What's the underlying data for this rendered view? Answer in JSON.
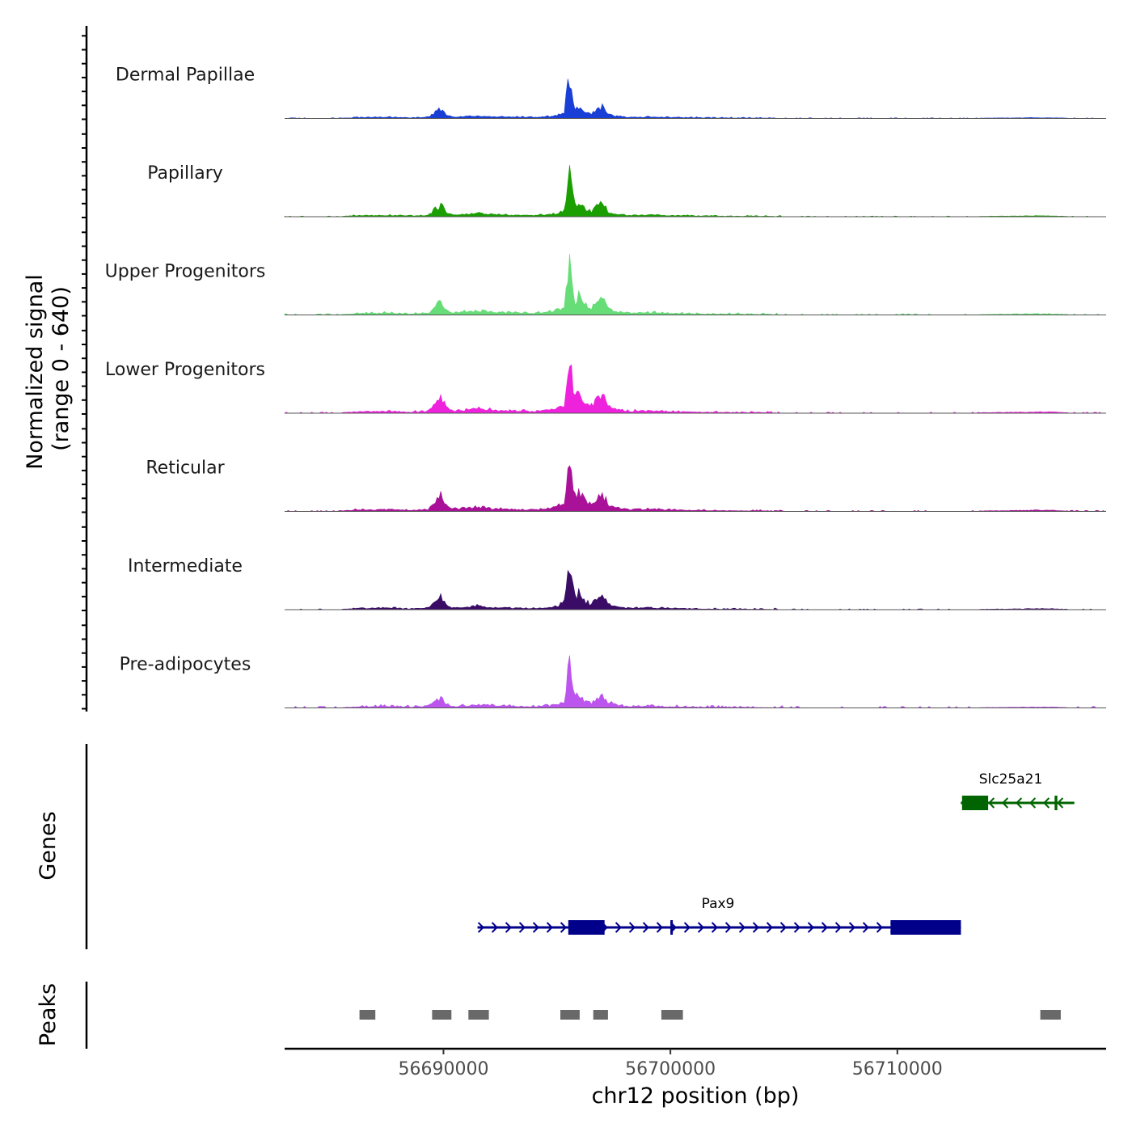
{
  "chart_data": {
    "type": "area",
    "title": "",
    "chromosome": "chr12",
    "xlabel": "chr12 position (bp)",
    "ylabel": "Normalized signal",
    "ylabel_range": "(range 0 - 640)",
    "y_range": [
      0,
      640
    ],
    "xlim": [
      56683000,
      56719200
    ],
    "x_ticks": [
      {
        "value": 56690000,
        "label": "56690000"
      },
      {
        "value": 56700000,
        "label": "56700000"
      },
      {
        "value": 56710000,
        "label": "56710000"
      }
    ],
    "bin_size_bp": 80,
    "peak_shape": [
      [
        56683000,
        0
      ],
      [
        56685000,
        0
      ],
      [
        56686400,
        15
      ],
      [
        56687800,
        18
      ],
      [
        56688500,
        10
      ],
      [
        56689300,
        16
      ],
      [
        56689880,
        150
      ],
      [
        56690100,
        55
      ],
      [
        56690400,
        20
      ],
      [
        56691100,
        30
      ],
      [
        56691500,
        45
      ],
      [
        56691900,
        32
      ],
      [
        56692500,
        22
      ],
      [
        56693300,
        18
      ],
      [
        56694000,
        16
      ],
      [
        56694800,
        30
      ],
      [
        56695300,
        70
      ],
      [
        56695550,
        620
      ],
      [
        56695780,
        140
      ],
      [
        56695960,
        200
      ],
      [
        56696200,
        110
      ],
      [
        56696500,
        65
      ],
      [
        56696950,
        180
      ],
      [
        56697300,
        60
      ],
      [
        56697600,
        35
      ],
      [
        56698200,
        18
      ],
      [
        56699000,
        22
      ],
      [
        56700200,
        14
      ],
      [
        56701500,
        8
      ],
      [
        56703000,
        6
      ],
      [
        56706000,
        4
      ],
      [
        56710000,
        5
      ],
      [
        56713000,
        4
      ],
      [
        56716600,
        12
      ],
      [
        56718000,
        2
      ],
      [
        56719200,
        0
      ]
    ],
    "series": [
      {
        "name": "Dermal Papillae",
        "color": "#1a3fd6",
        "scale": 0.63,
        "noise": 1.0,
        "seed": 11
      },
      {
        "name": "Papillary",
        "color": "#1a9e00",
        "scale": 0.74,
        "noise": 0.9,
        "seed": 23
      },
      {
        "name": "Upper Progenitors",
        "color": "#66dd77",
        "scale": 0.93,
        "noise": 1.2,
        "seed": 37
      },
      {
        "name": "Lower Progenitors",
        "color": "#ee22dd",
        "scale": 0.99,
        "noise": 1.1,
        "seed": 41
      },
      {
        "name": "Reticular",
        "color": "#aa1199",
        "scale": 0.99,
        "noise": 1.0,
        "seed": 53
      },
      {
        "name": "Intermediate",
        "color": "#3a0c66",
        "scale": 0.78,
        "noise": 1.0,
        "seed": 67
      },
      {
        "name": "Pre-adipocytes",
        "color": "#bb55ee",
        "scale": 0.67,
        "noise": 2.4,
        "seed": 79
      }
    ],
    "genes_label": "Genes",
    "genes": [
      {
        "name": "Slc25a21",
        "color": "#006400",
        "strand": "-",
        "start": 56712800,
        "end": 56717800,
        "exons": [
          [
            56712850,
            56714000
          ],
          [
            56716930,
            56717050
          ]
        ]
      },
      {
        "name": "Pax9",
        "color": "#00008b",
        "strand": "+",
        "start": 56691500,
        "end": 56712800,
        "exons": [
          [
            56695500,
            56697100
          ],
          [
            56700000,
            56700100
          ],
          [
            56709700,
            56712800
          ]
        ]
      }
    ],
    "peaks_label": "Peaks",
    "peaks": [
      [
        56686300,
        56687000
      ],
      [
        56689500,
        56690350
      ],
      [
        56691100,
        56692000
      ],
      [
        56695150,
        56696000
      ],
      [
        56696600,
        56697250
      ],
      [
        56699600,
        56700550
      ],
      [
        56716300,
        56717200
      ]
    ],
    "peak_color": "#696969"
  }
}
